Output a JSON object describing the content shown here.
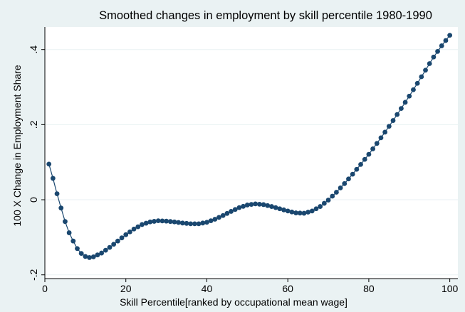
{
  "chart_data": {
    "type": "scatter",
    "title": "Smoothed changes in employment by skill percentile 1980-1990",
    "xlabel": "Skill Percentile[ranked by occupational mean wage]",
    "ylabel": "100 X Change in Employment Share",
    "xlim": [
      0,
      102
    ],
    "ylim": [
      -0.21,
      0.46
    ],
    "x_ticks": [
      0,
      20,
      40,
      60,
      80,
      100
    ],
    "x_tick_labels": [
      "0",
      "20",
      "40",
      "60",
      "80",
      "100"
    ],
    "y_ticks": [
      -0.2,
      0,
      0.2,
      0.4
    ],
    "y_tick_labels": [
      "-.2",
      "0",
      ".2",
      ".4"
    ],
    "grid": true,
    "legend": "none",
    "connected": true,
    "colors": {
      "marker": "#1a476f",
      "line": "#1a476f",
      "plot_background": "#ffffff",
      "outer_background": "#eaf2f3",
      "grid": "#eaf2f3",
      "title": "#1e3e62"
    },
    "anchors": [
      [
        1,
        0.095
      ],
      [
        2,
        0.057
      ],
      [
        3,
        0.016
      ],
      [
        4,
        -0.022
      ],
      [
        5,
        -0.058
      ],
      [
        6,
        -0.088
      ],
      [
        7,
        -0.11
      ],
      [
        8,
        -0.13
      ],
      [
        9,
        -0.143
      ],
      [
        10,
        -0.151
      ],
      [
        11,
        -0.154
      ],
      [
        12,
        -0.152
      ],
      [
        14,
        -0.142
      ],
      [
        16,
        -0.127
      ],
      [
        18,
        -0.11
      ],
      [
        20,
        -0.093
      ],
      [
        22,
        -0.078
      ],
      [
        24,
        -0.066
      ],
      [
        26,
        -0.059
      ],
      [
        28,
        -0.056
      ],
      [
        30,
        -0.057
      ],
      [
        32,
        -0.059
      ],
      [
        34,
        -0.062
      ],
      [
        36,
        -0.064
      ],
      [
        38,
        -0.064
      ],
      [
        40,
        -0.06
      ],
      [
        42,
        -0.052
      ],
      [
        44,
        -0.042
      ],
      [
        46,
        -0.031
      ],
      [
        48,
        -0.021
      ],
      [
        50,
        -0.014
      ],
      [
        52,
        -0.011
      ],
      [
        54,
        -0.013
      ],
      [
        56,
        -0.018
      ],
      [
        58,
        -0.024
      ],
      [
        60,
        -0.03
      ],
      [
        62,
        -0.035
      ],
      [
        64,
        -0.036
      ],
      [
        66,
        -0.03
      ],
      [
        68,
        -0.018
      ],
      [
        70,
        -0.001
      ],
      [
        72,
        0.02
      ],
      [
        74,
        0.043
      ],
      [
        76,
        0.068
      ],
      [
        78,
        0.094
      ],
      [
        80,
        0.121
      ],
      [
        82,
        0.15
      ],
      [
        84,
        0.18
      ],
      [
        86,
        0.211
      ],
      [
        88,
        0.243
      ],
      [
        90,
        0.276
      ],
      [
        92,
        0.31
      ],
      [
        94,
        0.345
      ],
      [
        96,
        0.38
      ],
      [
        98,
        0.41
      ],
      [
        100,
        0.438
      ]
    ]
  }
}
